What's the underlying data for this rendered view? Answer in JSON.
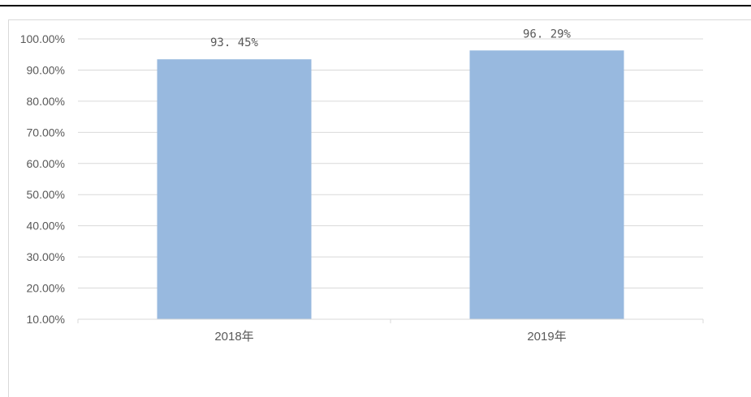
{
  "chart_data": {
    "type": "bar",
    "categories": [
      "2018年",
      "2019年"
    ],
    "values": [
      93.45,
      96.29
    ],
    "data_labels": [
      "93. 45%",
      "96. 29%"
    ],
    "y_ticks": [
      "10.00%",
      "20.00%",
      "30.00%",
      "40.00%",
      "50.00%",
      "60.00%",
      "70.00%",
      "80.00%",
      "90.00%",
      "100.00%"
    ],
    "ylim": [
      10,
      100
    ],
    "title": "",
    "xlabel": "",
    "ylabel": "",
    "grid": true,
    "legend": "none",
    "bar_color": "#98b9df",
    "grid_color": "#d9d9d9",
    "text_color": "#595959"
  }
}
